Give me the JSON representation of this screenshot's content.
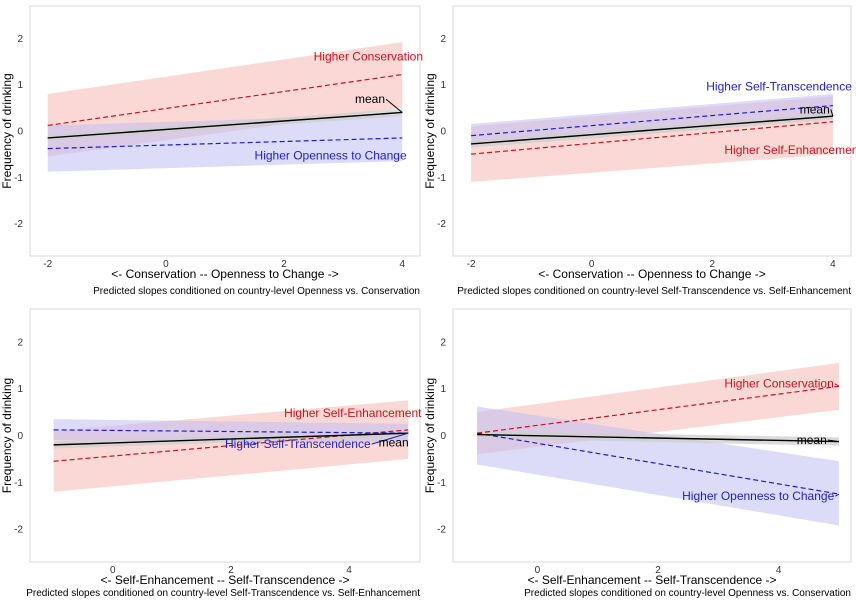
{
  "colors": {
    "red": "#c8141e",
    "red_band": "#f6b8b4",
    "blue": "#1e1ec8",
    "blue_band": "#c0c0f4",
    "mean": "#000000",
    "mean_band": "#cfcfcf"
  },
  "chart_data": [
    {
      "type": "line",
      "ylabel": "Frequency of drinking",
      "xlabel": "<- Conservation -- Openness to Change ->",
      "caption": "Predicted slopes conditioned on country-level Openness vs. Conservation",
      "x_ticks": [
        -2,
        0,
        2,
        4
      ],
      "y_ticks": [
        -2,
        -1,
        0,
        1,
        2
      ],
      "xlim": [
        -2.3,
        4.3
      ],
      "ylim": [
        -2.7,
        2.7
      ],
      "series": [
        {
          "name": "Higher Conservation",
          "color": "red",
          "dashed": true,
          "x": [
            -2,
            4
          ],
          "y": [
            0.12,
            1.22
          ],
          "band_lower": [
            -0.55,
            0.5
          ],
          "band_upper": [
            0.8,
            1.92
          ]
        },
        {
          "name": "Higher Openness to Change",
          "color": "blue",
          "dashed": true,
          "x": [
            -2,
            4
          ],
          "y": [
            -0.38,
            -0.15
          ],
          "band_lower": [
            -0.88,
            -0.65
          ],
          "band_upper": [
            0.12,
            0.35
          ]
        },
        {
          "name": "mean",
          "color": "mean",
          "dashed": false,
          "x": [
            -2,
            4
          ],
          "y": [
            -0.15,
            0.4
          ],
          "band_lower": [
            -0.22,
            0.32
          ],
          "band_upper": [
            -0.08,
            0.48
          ]
        }
      ],
      "annotations": [
        {
          "text": "Higher Conservation",
          "color": "red",
          "x": 2.5,
          "y": 1.52
        },
        {
          "text": "mean",
          "color": "mean",
          "x": 3.2,
          "y": 0.6
        },
        {
          "text": "Higher Openness to Change",
          "color": "blue",
          "x": 1.5,
          "y": -0.62
        }
      ]
    },
    {
      "type": "line",
      "ylabel": "Frequency of drinking",
      "xlabel": "<- Conservation -- Openness to Change ->",
      "caption": "Predicted slopes conditioned on country-level Self-Transcendence vs. Self-Enhancement",
      "x_ticks": [
        -2,
        0,
        2,
        4
      ],
      "y_ticks": [
        -2,
        -1,
        0,
        1,
        2
      ],
      "xlim": [
        -2.3,
        4.3
      ],
      "ylim": [
        -2.7,
        2.7
      ],
      "series": [
        {
          "name": "Higher Self-Enhancement",
          "color": "red",
          "dashed": true,
          "x": [
            -2,
            4
          ],
          "y": [
            -0.5,
            0.2
          ],
          "band_lower": [
            -1.1,
            -0.5
          ],
          "band_upper": [
            0.1,
            0.75
          ]
        },
        {
          "name": "Higher Self-Transcendence",
          "color": "blue",
          "dashed": true,
          "x": [
            -2,
            4
          ],
          "y": [
            -0.1,
            0.55
          ],
          "band_lower": [
            -0.3,
            0.3
          ],
          "band_upper": [
            0.15,
            0.8
          ]
        },
        {
          "name": "mean",
          "color": "mean",
          "dashed": false,
          "x": [
            -2,
            4
          ],
          "y": [
            -0.28,
            0.32
          ],
          "band_lower": [
            -0.36,
            0.24
          ],
          "band_upper": [
            -0.2,
            0.4
          ]
        }
      ],
      "annotations": [
        {
          "text": "Higher Self-Transcendence",
          "color": "blue",
          "x": 1.9,
          "y": 0.88
        },
        {
          "text": "mean",
          "color": "mean",
          "x": 3.45,
          "y": 0.38
        },
        {
          "text": "Higher Self-Enhancement",
          "color": "red",
          "x": 2.2,
          "y": -0.5
        }
      ]
    },
    {
      "type": "line",
      "ylabel": "Frequency of drinking",
      "xlabel": "<- Self-Enhancement -- Self-Transcendence ->",
      "caption": "Predicted slopes conditioned on country-level Self-Transcendence vs. Self-Enhancement",
      "x_ticks": [
        0,
        2,
        4
      ],
      "y_ticks": [
        -2,
        -1,
        0,
        1,
        2
      ],
      "xlim": [
        -1.4,
        5.2
      ],
      "ylim": [
        -2.7,
        2.7
      ],
      "series": [
        {
          "name": "Higher Self-Enhancement",
          "color": "red",
          "dashed": true,
          "x": [
            -1,
            5
          ],
          "y": [
            -0.55,
            0.12
          ],
          "band_lower": [
            -1.2,
            -0.5
          ],
          "band_upper": [
            0.1,
            0.75
          ]
        },
        {
          "name": "Higher Self-Transcendence",
          "color": "blue",
          "dashed": true,
          "x": [
            -1,
            5
          ],
          "y": [
            0.12,
            0.05
          ],
          "band_lower": [
            -0.1,
            -0.15
          ],
          "band_upper": [
            0.35,
            0.25
          ]
        },
        {
          "name": "mean",
          "color": "mean",
          "dashed": false,
          "x": [
            -1,
            5
          ],
          "y": [
            -0.2,
            0.05
          ],
          "band_lower": [
            -0.28,
            -0.02
          ],
          "band_upper": [
            -0.12,
            0.12
          ]
        }
      ],
      "annotations": [
        {
          "text": "Higher Self-Enhancement",
          "color": "red",
          "x": 2.9,
          "y": 0.4
        },
        {
          "text": "Higher Self-Transcendence",
          "color": "blue",
          "x": 1.9,
          "y": -0.27
        },
        {
          "text": "mean",
          "color": "mean",
          "x": 4.5,
          "y": -0.23
        }
      ]
    },
    {
      "type": "line",
      "ylabel": "Frequency of drinking",
      "xlabel": "<- Self-Enhancement -- Self-Transcendence ->",
      "caption": "Predicted slopes conditioned on country-level Openness vs. Conservation",
      "x_ticks": [
        0,
        2,
        4
      ],
      "y_ticks": [
        -2,
        -1,
        0,
        1,
        2
      ],
      "xlim": [
        -1.4,
        5.2
      ],
      "ylim": [
        -2.7,
        2.7
      ],
      "series": [
        {
          "name": "Higher Conservation",
          "color": "red",
          "dashed": true,
          "x": [
            -1,
            5
          ],
          "y": [
            0.05,
            1.05
          ],
          "band_lower": [
            -0.4,
            0.55
          ],
          "band_upper": [
            0.5,
            1.55
          ]
        },
        {
          "name": "Higher Openness to Change",
          "color": "blue",
          "dashed": true,
          "x": [
            -1,
            5
          ],
          "y": [
            0.05,
            -1.25
          ],
          "band_lower": [
            -0.62,
            -1.92
          ],
          "band_upper": [
            0.62,
            -0.55
          ]
        },
        {
          "name": "mean",
          "color": "mean",
          "dashed": false,
          "x": [
            -1,
            5
          ],
          "y": [
            0.02,
            -0.13
          ],
          "band_lower": [
            -0.06,
            -0.22
          ],
          "band_upper": [
            0.1,
            -0.04
          ]
        }
      ],
      "annotations": [
        {
          "text": "Higher Conservation",
          "color": "red",
          "x": 3.1,
          "y": 1.02
        },
        {
          "text": "mean",
          "color": "mean",
          "x": 4.3,
          "y": -0.18
        },
        {
          "text": "Higher Openness to Change",
          "color": "blue",
          "x": 2.4,
          "y": -1.38
        }
      ]
    }
  ]
}
